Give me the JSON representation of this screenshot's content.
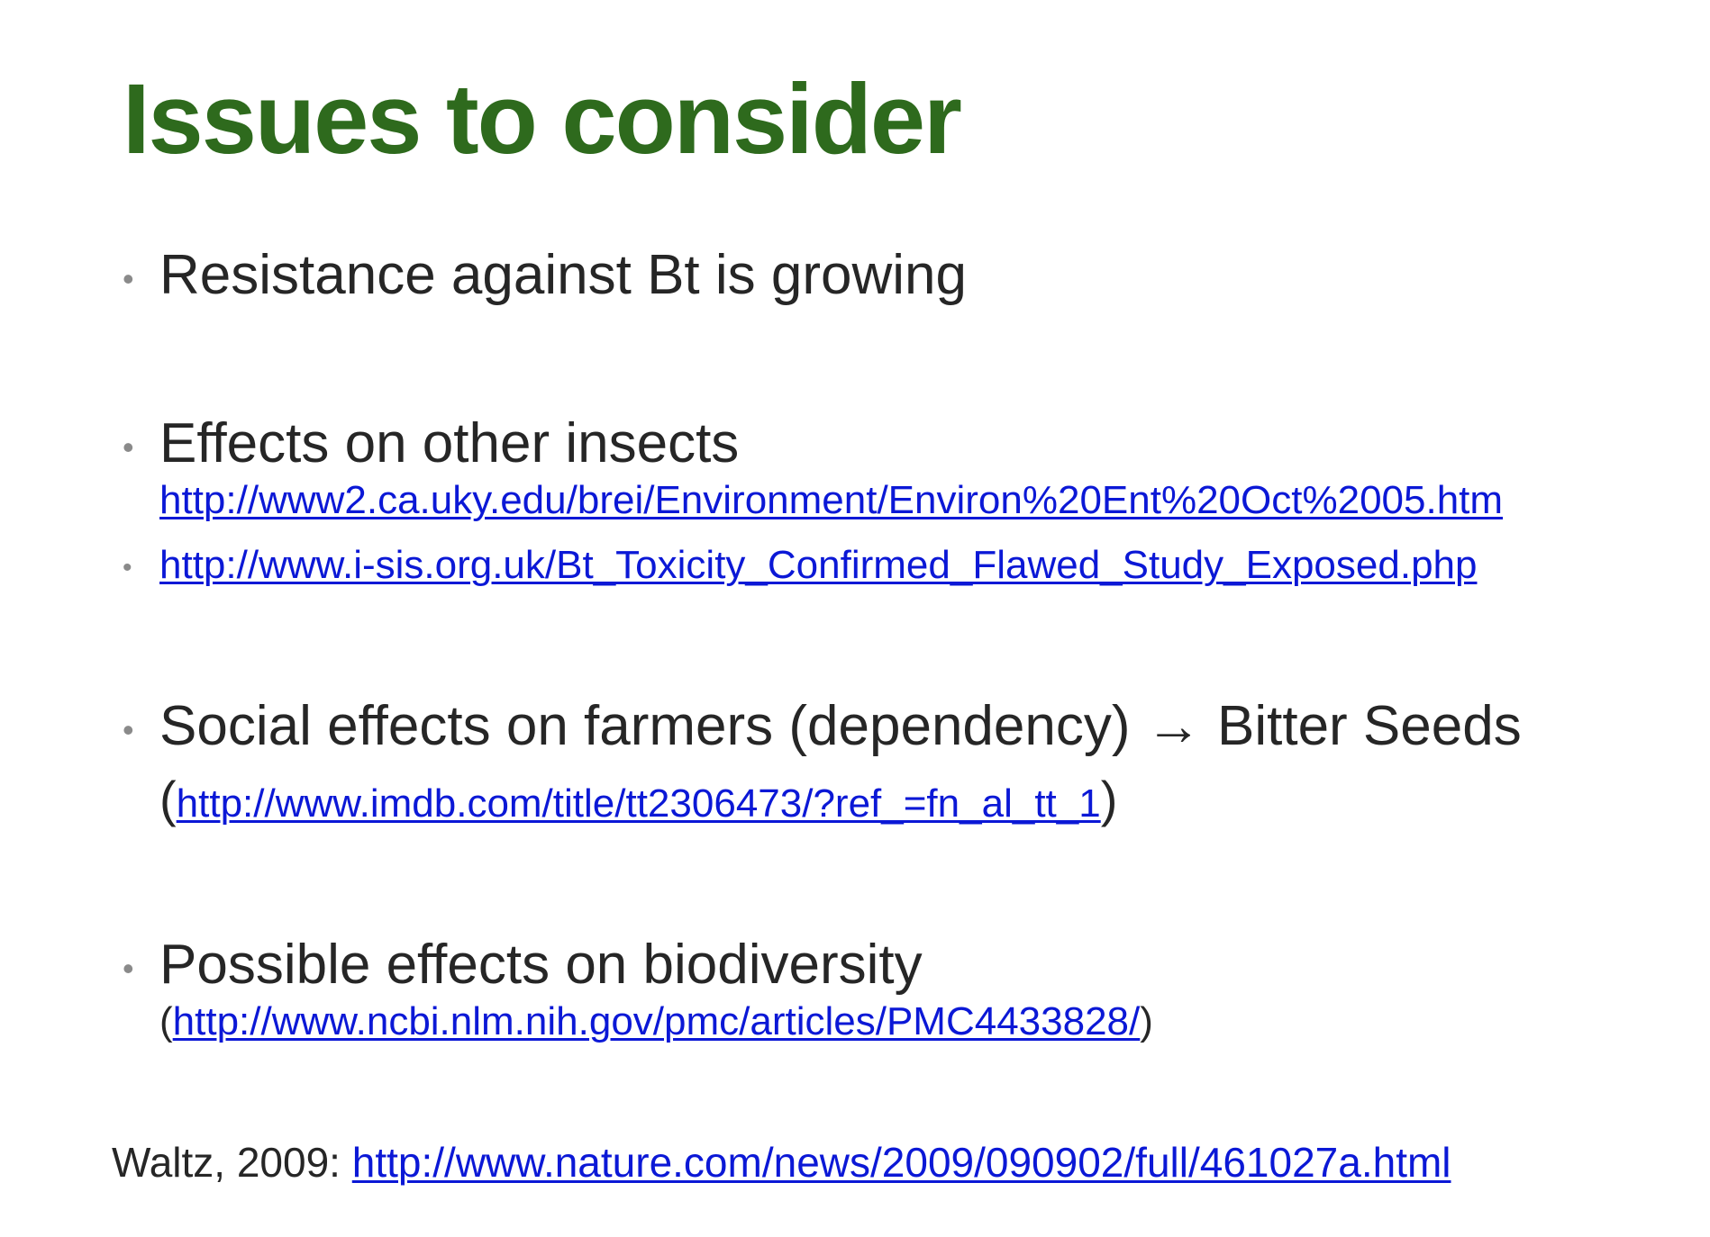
{
  "slide": {
    "title": "Issues to consider",
    "bullets": [
      {
        "text": "Resistance against Bt is growing"
      },
      {
        "text": "Effects on other insects",
        "link": "http://www2.ca.uky.edu/brei/Environment/Environ%20Ent%20Oct%2005.htm"
      },
      {
        "link": "http://www.i-sis.org.uk/Bt_Toxicity_Confirmed_Flawed_Study_Exposed.php"
      },
      {
        "text": "Social effects on farmers (dependency)",
        "arrow": "→",
        "text_after": "Bitter Seeds",
        "paren_open": "(",
        "link": "http://www.imdb.com/title/tt2306473/?ref_=fn_al_tt_1",
        "paren_close": ")"
      },
      {
        "text": "Possible effects on biodiversity",
        "paren_open": "(",
        "link": "http://www.ncbi.nlm.nih.gov/pmc/articles/PMC4433828/",
        "paren_close": ")"
      }
    ],
    "bullet_symbol": "•",
    "footer": {
      "label": "Waltz, 2009:",
      "link": "http://www.nature.com/news/2009/090902/full/461027a.html"
    },
    "colors": {
      "title": "#2e6a1d",
      "text": "#262626",
      "link": "#0b18d6",
      "bullet": "#8a8a8a"
    }
  }
}
